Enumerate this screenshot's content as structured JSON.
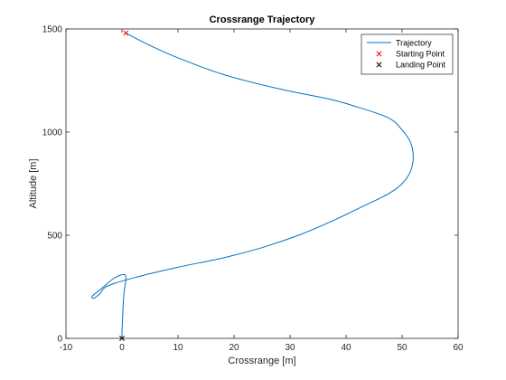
{
  "chart_data": {
    "type": "line",
    "title": "Crossrange Trajectory",
    "xlabel": "Crossrange [m]",
    "ylabel": "Altitude [m]",
    "xlim": [
      -10,
      60
    ],
    "ylim": [
      0,
      1500
    ],
    "xticks": [
      -10,
      0,
      10,
      20,
      30,
      40,
      50,
      60
    ],
    "yticks": [
      0,
      500,
      1000,
      1500
    ],
    "grid": false,
    "legend_position": "top-right",
    "colors": {
      "trajectory": "#0072BD",
      "starting_point": "#FF0000",
      "landing_point": "#000000",
      "axis": "#262626"
    },
    "series": [
      {
        "name": "Trajectory",
        "marker": "none",
        "x": [
          0.7,
          5,
          10,
          18,
          28,
          37,
          41,
          47.5,
          50,
          51.5,
          52,
          51.5,
          50,
          47.5,
          43,
          38,
          32,
          25,
          18,
          10,
          3,
          -2.5,
          -4,
          -5,
          -5.3,
          -3.5,
          -1.5,
          0.3,
          0.7,
          0.4,
          0.2,
          0.1,
          0.0,
          0.0
        ],
        "y": [
          1480,
          1420,
          1360,
          1280,
          1210,
          1160,
          1130,
          1070,
          1010,
          950,
          880,
          810,
          750,
          700,
          640,
          575,
          505,
          440,
          390,
          345,
          300,
          255,
          215,
          195,
          205,
          245,
          290,
          310,
          290,
          230,
          160,
          90,
          30,
          0
        ]
      },
      {
        "name": "Starting Point",
        "marker": "x",
        "x": [
          0.7
        ],
        "y": [
          1480
        ]
      },
      {
        "name": "Landing Point",
        "marker": "x",
        "x": [
          0.0
        ],
        "y": [
          0
        ]
      }
    ]
  }
}
